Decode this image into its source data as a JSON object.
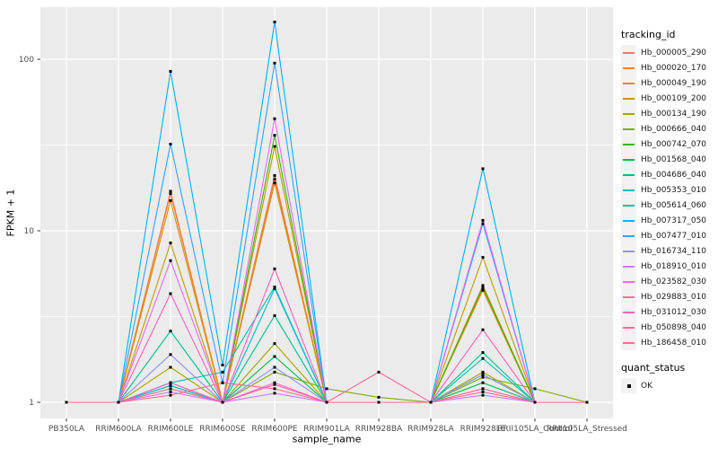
{
  "chart_data": {
    "type": "line",
    "title": "",
    "xlabel": "sample_name",
    "ylabel": "FPKM + 1",
    "y_scale": "log10",
    "ylim": [
      1,
      200
    ],
    "y_major_ticks": [
      1,
      10,
      100
    ],
    "y_minor_ticks": [
      3.162,
      31.623
    ],
    "grid": "on",
    "legend_position": "right",
    "legend_title": "tracking_id",
    "panel_bg": "#EBEBEB",
    "grid_color": "#FFFFFF",
    "axis_text_color": "#4D4D4D",
    "tick_color": "#333333",
    "point_marker": "black-square",
    "point_color": "#000000",
    "categories": [
      "PB350LA",
      "RRIM600LA",
      "RRIM600LE",
      "RRIM600SE",
      "RRIM600PE",
      "RRIM901LA",
      "RRIM928BA",
      "RRIM928LA",
      "RRIM928LE",
      "RRII105LA_Control",
      "RRII105LA_Stressed"
    ],
    "series": [
      {
        "name": "Hb_000005_290",
        "color": "#F8766D",
        "values": [
          1,
          1,
          16.5,
          1,
          21,
          1,
          1,
          1,
          4.6,
          1,
          1
        ]
      },
      {
        "name": "Hb_000020_170",
        "color": "#EA8331",
        "values": [
          1,
          1,
          17,
          1,
          20,
          1,
          1,
          1,
          4.8,
          1,
          1
        ]
      },
      {
        "name": "Hb_000049_190",
        "color": "#D89000",
        "values": [
          1,
          1,
          15,
          1,
          19,
          1,
          1,
          1,
          4.5,
          1,
          1
        ]
      },
      {
        "name": "Hb_000109_200",
        "color": "#C09B00",
        "values": [
          1,
          1,
          8.5,
          1,
          31,
          1,
          1,
          1,
          7,
          1,
          1
        ]
      },
      {
        "name": "Hb_000134_190",
        "color": "#A3A500",
        "values": [
          1,
          1,
          1.6,
          1,
          2.2,
          1,
          1,
          1,
          1.5,
          1,
          1
        ]
      },
      {
        "name": "Hb_000666_040",
        "color": "#7CAE00",
        "values": [
          1,
          1,
          1.25,
          1,
          1.5,
          1.2,
          1.07,
          1,
          1.4,
          1.2,
          1
        ]
      },
      {
        "name": "Hb_000742_070",
        "color": "#39B600",
        "values": [
          1,
          1,
          1.3,
          1,
          36,
          1,
          1,
          1,
          4.7,
          1,
          1
        ]
      },
      {
        "name": "Hb_001568_040",
        "color": "#00BB4E",
        "values": [
          1,
          1,
          1.2,
          1,
          1.85,
          1,
          1,
          1,
          1.3,
          1,
          1
        ]
      },
      {
        "name": "Hb_004686_040",
        "color": "#00C087",
        "values": [
          1,
          1,
          2.6,
          1,
          3.2,
          1,
          1,
          1,
          1.95,
          1,
          1
        ]
      },
      {
        "name": "Hb_005353_010",
        "color": "#00C0B2",
        "values": [
          1,
          1,
          1.3,
          1.5,
          4.7,
          1,
          1,
          1,
          1.8,
          1,
          1
        ]
      },
      {
        "name": "Hb_005614_060",
        "color": "#00BDD0",
        "values": [
          1,
          1,
          1.25,
          1,
          4.6,
          1,
          1,
          1,
          1.45,
          1,
          1
        ]
      },
      {
        "name": "Hb_007317_050",
        "color": "#00B4EF",
        "values": [
          1,
          1,
          85,
          1.65,
          165,
          1,
          1,
          1,
          23,
          1,
          1
        ]
      },
      {
        "name": "Hb_007477_010",
        "color": "#35A2FF",
        "values": [
          1,
          1,
          32,
          1.3,
          95,
          1,
          1,
          1,
          11,
          1,
          1
        ]
      },
      {
        "name": "Hb_016734_110",
        "color": "#9590FF",
        "values": [
          1,
          1,
          1.9,
          1,
          1.6,
          1,
          1,
          1,
          1.45,
          1,
          1
        ]
      },
      {
        "name": "Hb_018910_010",
        "color": "#C77CFF",
        "values": [
          1,
          1,
          1.15,
          1,
          1.13,
          1,
          1,
          1,
          1.1,
          1,
          1
        ]
      },
      {
        "name": "Hb_023582_030",
        "color": "#E76BF3",
        "values": [
          1,
          1,
          6.7,
          1,
          45,
          1,
          1,
          1,
          11.5,
          1,
          1
        ]
      },
      {
        "name": "Hb_029883_010",
        "color": "#FA62DB",
        "values": [
          1,
          1,
          1.3,
          1,
          1.3,
          1,
          1,
          1,
          1.2,
          1,
          1
        ]
      },
      {
        "name": "Hb_031012_030",
        "color": "#FF62BC",
        "values": [
          1,
          1,
          4.3,
          1,
          6,
          1,
          1,
          1,
          2.65,
          1,
          1
        ]
      },
      {
        "name": "Hb_050898_040",
        "color": "#FF6A98",
        "values": [
          1,
          1,
          1.2,
          1,
          1.27,
          1,
          1.5,
          1,
          1.2,
          1,
          1
        ]
      },
      {
        "name": "Hb_186458_010",
        "color": "#FF6C91",
        "values": [
          1,
          1,
          1.1,
          1.3,
          1.2,
          1,
          1,
          1,
          1.15,
          1,
          1
        ]
      }
    ],
    "quant_status_legend": {
      "title": "quant_status",
      "items": [
        {
          "label": "OK",
          "marker": "black-square"
        }
      ]
    }
  }
}
